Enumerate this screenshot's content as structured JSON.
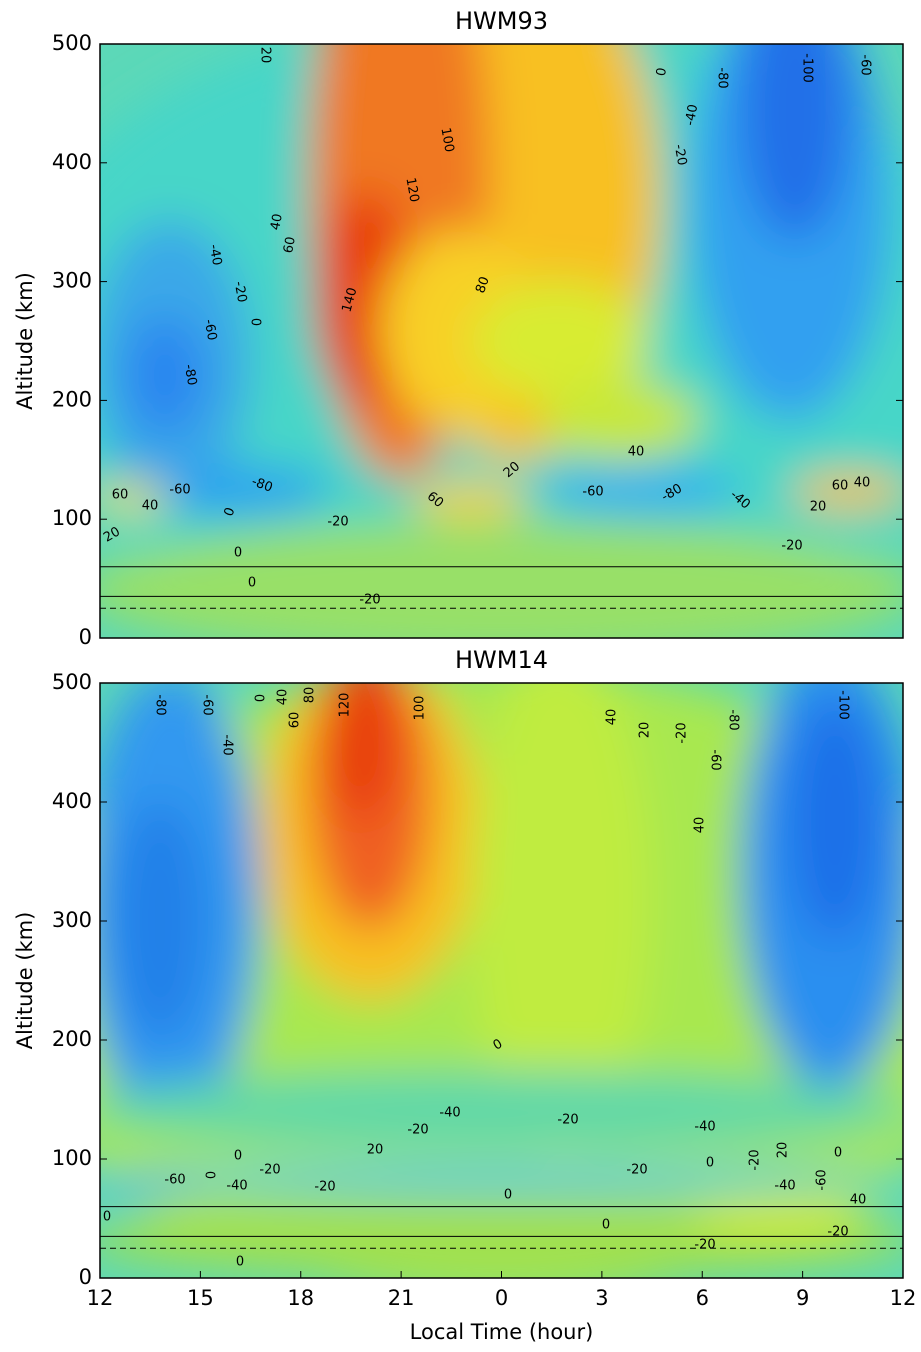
{
  "chart_data": [
    {
      "type": "contour",
      "title": "HWM93",
      "ylabel": "Altitude (km)",
      "xlim": [
        12,
        36
      ],
      "ylim": [
        0,
        500
      ],
      "yticks": [
        0,
        100,
        200,
        300,
        400,
        500
      ],
      "contour_labels": [
        20,
        100,
        120,
        40,
        60,
        140,
        80,
        -40,
        -20,
        0,
        -60,
        -80,
        0,
        -80,
        -40,
        -20,
        -100,
        -60,
        40,
        20,
        -60,
        -80,
        -40,
        60,
        40,
        20,
        60,
        40,
        -60,
        -80,
        0,
        60,
        -20,
        20,
        0,
        0,
        -20,
        -20
      ]
    },
    {
      "type": "contour",
      "title": "HWM14",
      "ylabel": "Altitude (km)",
      "xlabel": "Local Time (hour)",
      "xlim": [
        12,
        36
      ],
      "ylim": [
        0,
        500
      ],
      "yticks": [
        0,
        100,
        200,
        300,
        400,
        500
      ],
      "xticks": [
        12,
        15,
        18,
        21,
        {
          "value": 24,
          "label": "0"
        },
        {
          "value": 27,
          "label": "3"
        },
        {
          "value": 30,
          "label": "6"
        },
        {
          "value": 33,
          "label": "9"
        },
        {
          "value": 36,
          "label": "12"
        }
      ],
      "contour_labels": [
        -80,
        -60,
        -40,
        0,
        40,
        60,
        80,
        120,
        100,
        40,
        20,
        -20,
        -80,
        -60,
        40,
        -100,
        0,
        -40,
        -20,
        -20,
        -40,
        20,
        0,
        -20,
        0,
        -60,
        -40,
        -20,
        0,
        -20,
        0,
        -20,
        20,
        0,
        -40,
        -60,
        40,
        0,
        0,
        -20,
        -20,
        0
      ]
    }
  ]
}
